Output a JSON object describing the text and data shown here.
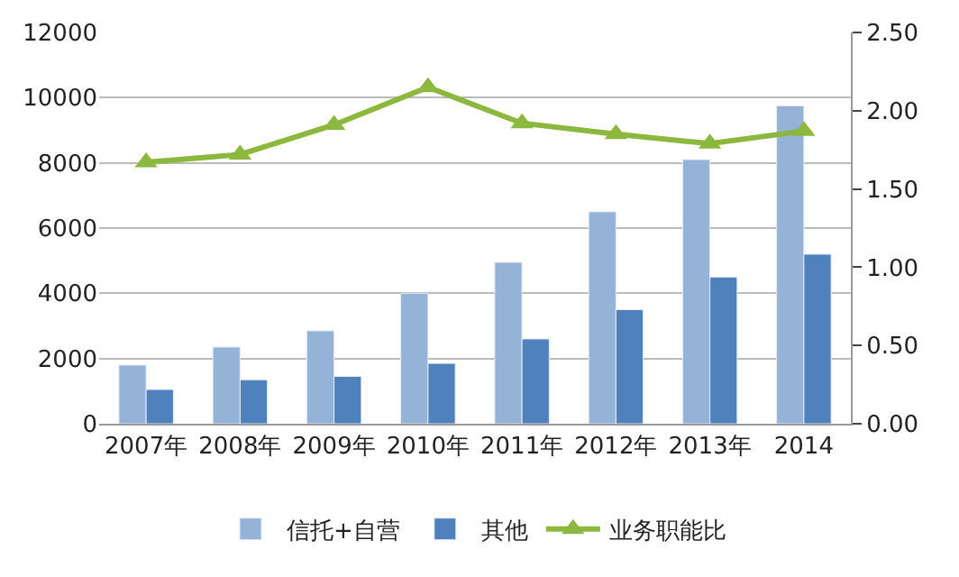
{
  "chart_data": {
    "type": "bar",
    "categories": [
      "2007年",
      "2008年",
      "2009年",
      "2010年",
      "2011年",
      "2012年",
      "2013年",
      "2014"
    ],
    "series": [
      {
        "name": "信托+自营",
        "color": "#95b3d7",
        "values": [
          1800,
          2350,
          2850,
          4000,
          4950,
          6500,
          8100,
          9750
        ]
      },
      {
        "name": "其他",
        "color": "#4f81bd",
        "values": [
          1050,
          1350,
          1450,
          1850,
          2600,
          3500,
          4500,
          5200
        ]
      },
      {
        "name": "业务职能比",
        "type": "line",
        "axis": "y2",
        "color": "#8cb83f",
        "marker": "triangle",
        "values": [
          1.67,
          1.72,
          1.91,
          2.15,
          1.92,
          1.85,
          1.79,
          1.87
        ]
      }
    ],
    "ylim": [
      0,
      12000
    ],
    "yticks": [
      0,
      2000,
      4000,
      6000,
      8000,
      10000,
      12000
    ],
    "y2lim": [
      0,
      2.5
    ],
    "y2ticks": [
      {
        "value": 0,
        "label": "0.00"
      },
      {
        "value": 0.5,
        "label": "0.50"
      },
      {
        "value": 1,
        "label": "1.00"
      },
      {
        "value": 1.5,
        "label": "1.50"
      },
      {
        "value": 2,
        "label": "2.00"
      },
      {
        "value": 2.5,
        "label": "2.50"
      }
    ],
    "grid": "y",
    "legend": "bottom"
  }
}
